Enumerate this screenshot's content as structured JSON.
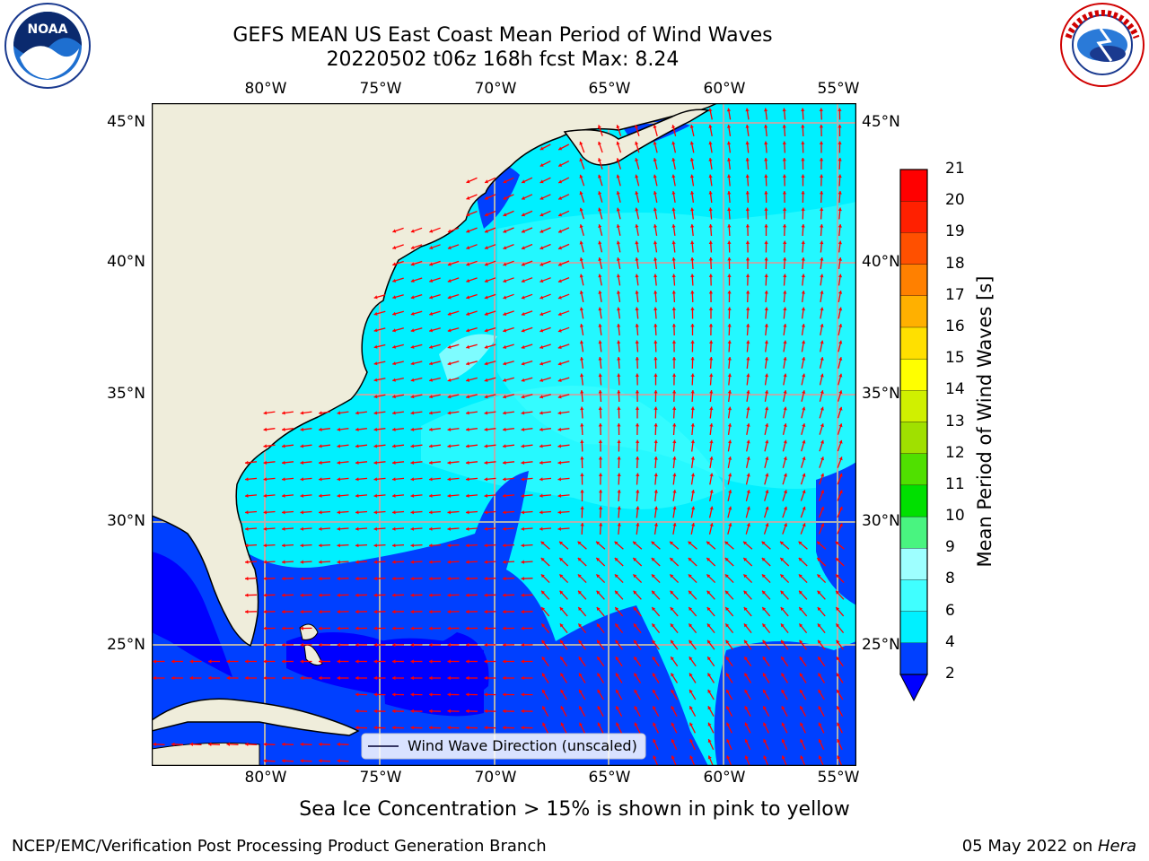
{
  "title": {
    "line1": "GEFS MEAN US East Coast Mean Period of Wind Waves",
    "line2": "20220502 t06z 168h fcst   Max: 8.24"
  },
  "map": {
    "lon_labels": [
      "80°W",
      "75°W",
      "70°W",
      "65°W",
      "60°W",
      "55°W"
    ],
    "lat_labels": [
      "45°N",
      "40°N",
      "35°N",
      "30°N",
      "25°N"
    ],
    "lon_range": [
      -85,
      -54.3
    ],
    "lat_range": [
      20.4,
      45.8
    ],
    "grid": true,
    "colors": {
      "land": "#efeddb",
      "coast": "#000000",
      "arrow": "#ff0000",
      "grid": "#b0b0b0"
    },
    "legend": {
      "label": "Wind Wave Direction (unscaled)",
      "placement": "bottom-center"
    }
  },
  "colorbar": {
    "label": "Mean Period of Wind Waves [s]",
    "ticks": [
      "2",
      "4",
      "6",
      "8",
      "9",
      "10",
      "11",
      "12",
      "13",
      "14",
      "15",
      "16",
      "17",
      "18",
      "19",
      "20",
      "21"
    ],
    "colors": [
      "#0040ff",
      "#00f0ff",
      "#40ffff",
      "#9effff",
      "#49f480",
      "#00e000",
      "#50e000",
      "#a0e000",
      "#d0f000",
      "#ffff00",
      "#ffe000",
      "#ffb000",
      "#ff8000",
      "#ff5000",
      "#ff2000",
      "#ff0000"
    ],
    "underflow_color": "#0000ff"
  },
  "note": "Sea Ice Concentration > 15% is shown in pink to yellow",
  "footer": {
    "left": "NCEP/EMC/Verification Post Processing Product Generation Branch",
    "date": "05 May 2022 on ",
    "machine": "Hera"
  },
  "logos": {
    "left": {
      "name": "NOAA",
      "ring_text": "NATIONAL OCEANIC AND ATMOSPHERIC ADMINISTRATION · U.S. DEPARTMENT OF COMMERCE"
    },
    "right": {
      "name": "NATIONAL WEATHER SERVICE"
    }
  }
}
